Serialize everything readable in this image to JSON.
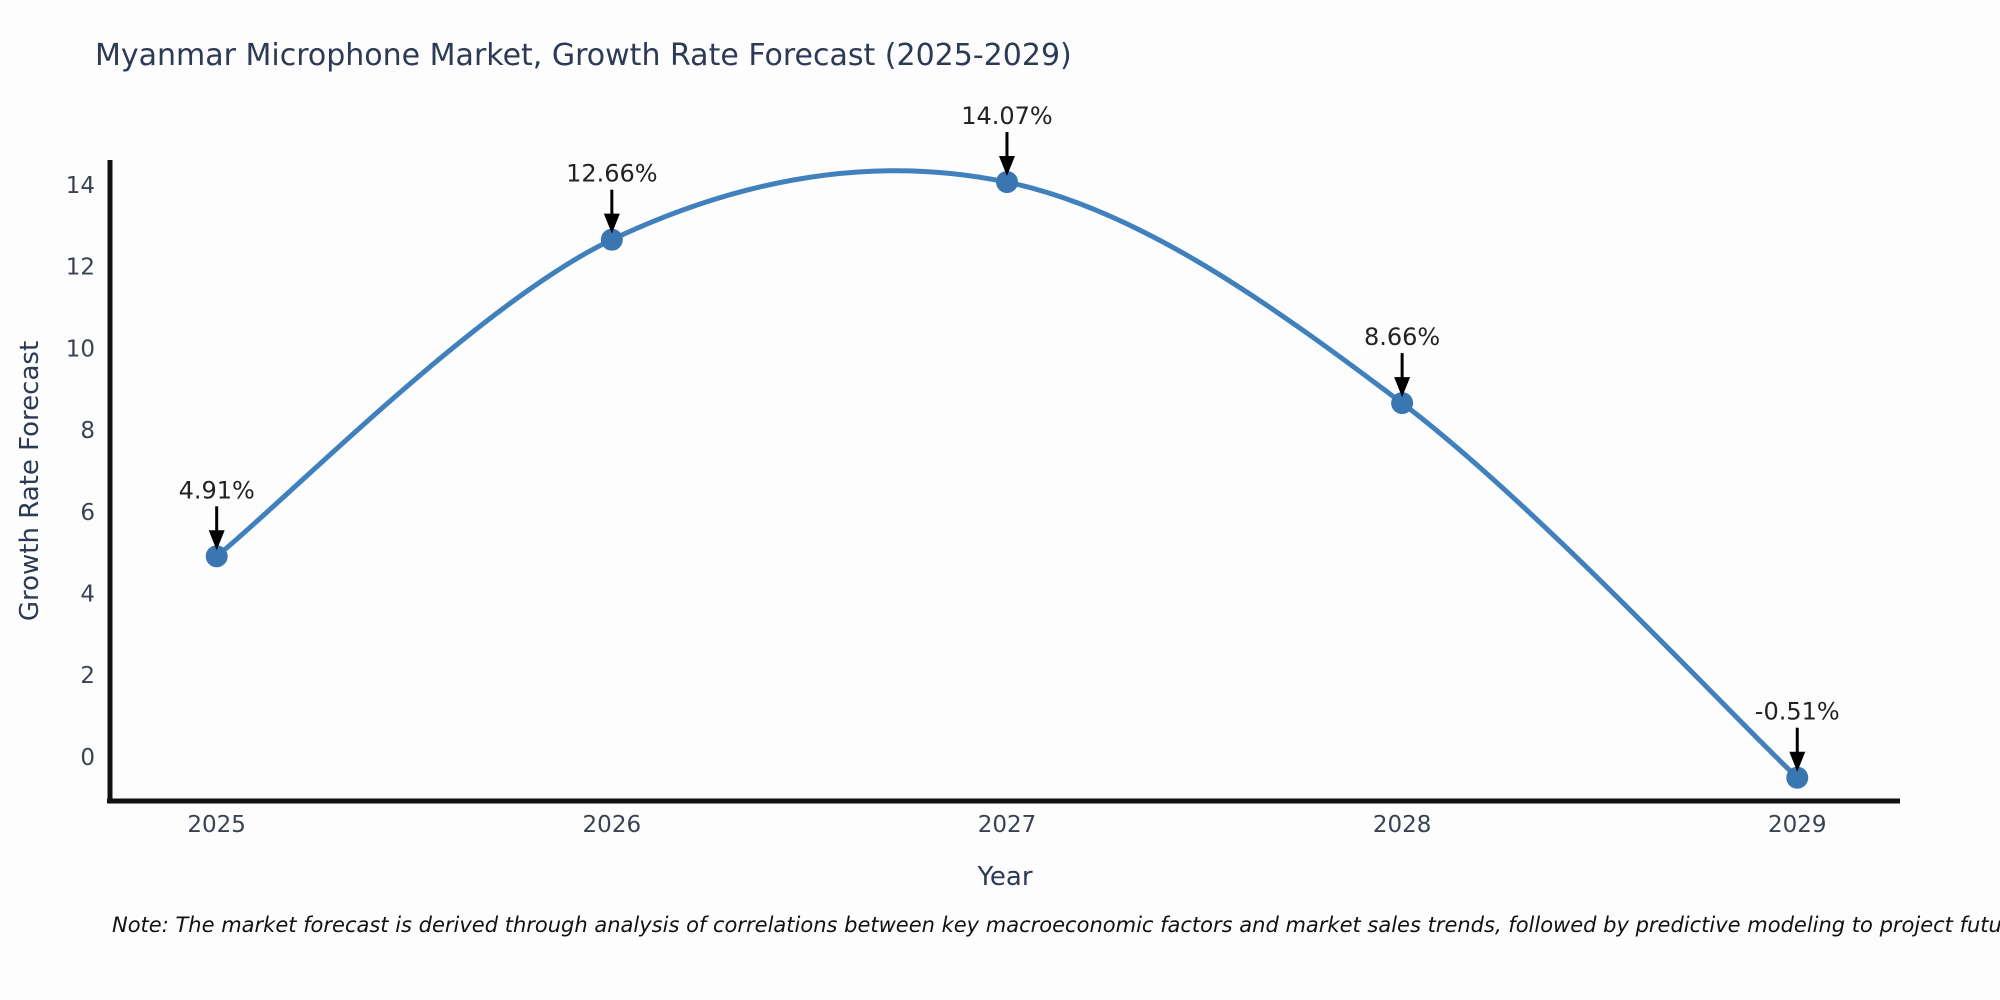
{
  "chart_data": {
    "type": "line",
    "title": "Myanmar Microphone Market, Growth Rate Forecast (2025-2029)",
    "xlabel": "Year",
    "ylabel": "Growth Rate Forecast",
    "x": [
      2025,
      2026,
      2027,
      2028,
      2029
    ],
    "series": [
      {
        "name": "Growth Rate Forecast",
        "values": [
          4.91,
          12.66,
          14.07,
          8.66,
          -0.51
        ]
      }
    ],
    "point_labels": [
      "4.91%",
      "12.66%",
      "14.07%",
      "8.66%",
      "-0.51%"
    ],
    "yticks": [
      0,
      2,
      4,
      6,
      8,
      10,
      12,
      14
    ],
    "xticks": [
      "2025",
      "2026",
      "2027",
      "2028",
      "2029"
    ],
    "ylim": [
      -1.08,
      14.61
    ],
    "xlim": [
      2024.73,
      2029.26
    ],
    "grid": false,
    "legend": "none",
    "smooth": true,
    "marker": "circle",
    "annotation_arrows": true,
    "colors": {
      "line": "#4080bc",
      "marker": "#3a76b2",
      "axis": "#111111",
      "title_text": "#2c3a55",
      "tick_text": "#3a4252",
      "annotation_text": "#222222",
      "background": "#fdfdfd"
    },
    "note": "Note: The market forecast is derived through analysis of correlations between key macroeconomic factors and market sales trends, followed by predictive modeling to project future sales"
  }
}
